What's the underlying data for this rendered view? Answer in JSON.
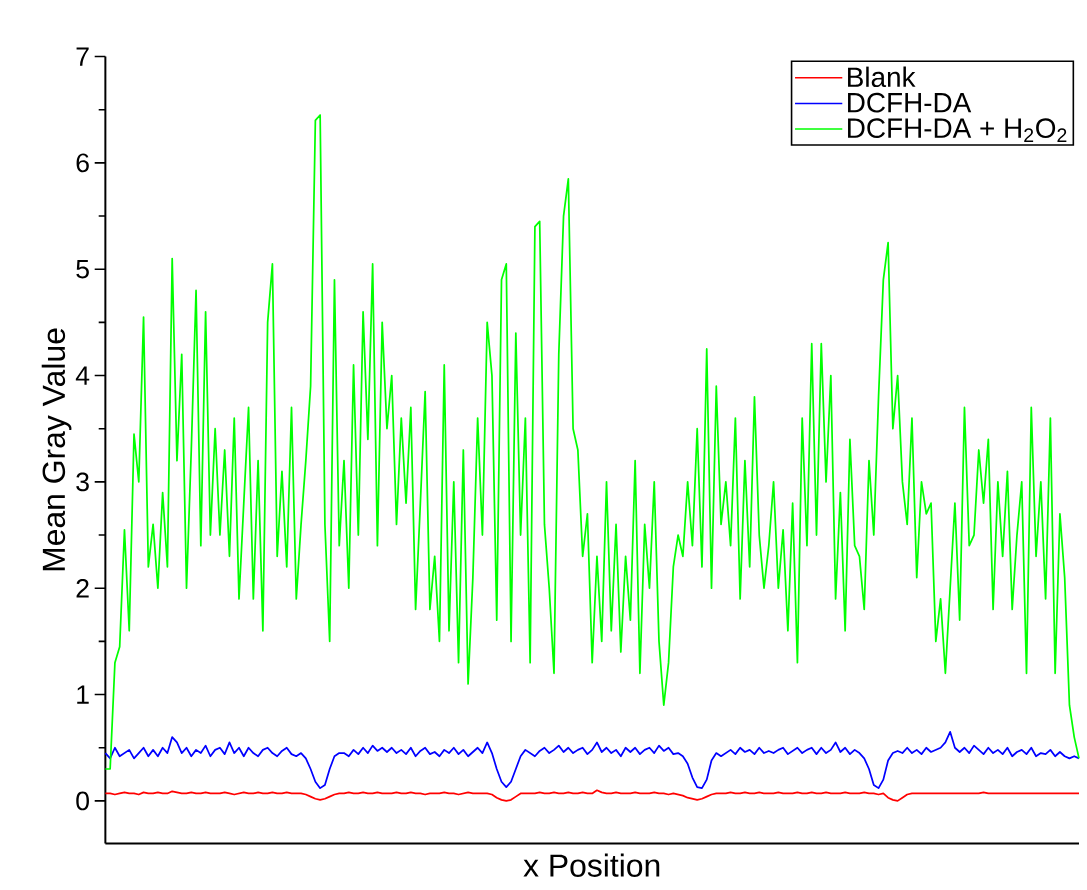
{
  "chart_data": {
    "type": "line",
    "xlabel": "x Position",
    "ylabel": "Mean Gray Value",
    "categories": [
      null,
      null,
      null,
      null,
      null,
      null,
      null,
      null,
      null,
      null,
      null,
      null,
      null,
      null,
      null,
      null,
      null,
      null,
      null,
      null,
      null,
      null,
      null,
      null,
      null,
      null,
      null,
      null,
      null,
      null,
      null,
      null,
      null,
      null,
      null,
      null,
      null,
      null,
      null,
      null,
      null,
      null,
      null,
      null,
      null,
      null,
      null,
      null,
      null,
      null,
      null,
      null,
      null,
      null,
      null,
      null,
      null,
      null,
      null,
      null,
      null,
      null,
      null,
      null,
      null,
      null,
      null,
      null,
      null,
      null,
      null,
      null,
      null,
      null,
      null,
      null,
      null,
      null,
      null,
      null,
      null,
      null,
      null,
      null,
      null,
      null,
      null,
      null,
      null,
      null,
      null,
      null,
      null,
      null,
      null,
      null,
      null,
      null,
      null,
      null,
      null,
      null,
      null,
      null,
      null,
      null,
      null,
      null,
      null,
      null,
      null,
      null,
      null,
      null,
      null,
      null,
      null,
      null,
      null,
      null,
      null,
      null,
      null,
      null,
      null,
      null,
      null,
      null,
      null,
      null,
      null,
      null,
      null,
      null,
      null,
      null,
      null,
      null,
      null,
      null,
      null,
      null,
      null,
      null,
      null,
      null,
      null,
      null,
      null,
      null,
      null,
      null,
      null,
      null,
      null,
      null,
      null,
      null,
      null,
      null,
      null,
      null,
      null,
      null,
      null,
      null,
      null,
      null,
      null,
      null,
      null,
      null,
      null,
      null,
      null,
      null,
      null,
      null,
      null,
      null,
      null,
      null,
      null,
      null,
      null,
      null,
      null,
      null,
      null,
      null,
      null,
      null,
      null,
      null,
      null,
      null,
      null,
      null,
      null,
      null,
      null,
      null,
      null,
      null,
      null
    ],
    "series": [
      {
        "name": "Blank",
        "color": "#ff0000",
        "values": [
          0.07,
          0.07,
          0.06,
          0.07,
          0.08,
          0.07,
          0.07,
          0.06,
          0.08,
          0.07,
          0.07,
          0.08,
          0.07,
          0.07,
          0.09,
          0.08,
          0.07,
          0.07,
          0.08,
          0.07,
          0.07,
          0.08,
          0.07,
          0.07,
          0.07,
          0.08,
          0.07,
          0.06,
          0.07,
          0.08,
          0.07,
          0.07,
          0.08,
          0.07,
          0.07,
          0.08,
          0.07,
          0.07,
          0.08,
          0.07,
          0.07,
          0.07,
          0.06,
          0.04,
          0.02,
          0.01,
          0.02,
          0.04,
          0.06,
          0.07,
          0.07,
          0.08,
          0.07,
          0.07,
          0.08,
          0.07,
          0.07,
          0.08,
          0.07,
          0.07,
          0.07,
          0.08,
          0.07,
          0.07,
          0.08,
          0.07,
          0.07,
          0.06,
          0.07,
          0.07,
          0.07,
          0.08,
          0.07,
          0.07,
          0.06,
          0.07,
          0.08,
          0.07,
          0.07,
          0.07,
          0.07,
          0.06,
          0.03,
          0.01,
          0.0,
          0.01,
          0.04,
          0.07,
          0.07,
          0.07,
          0.07,
          0.08,
          0.07,
          0.07,
          0.08,
          0.07,
          0.07,
          0.08,
          0.07,
          0.07,
          0.08,
          0.07,
          0.07,
          0.1,
          0.08,
          0.07,
          0.07,
          0.08,
          0.07,
          0.07,
          0.07,
          0.08,
          0.07,
          0.07,
          0.07,
          0.08,
          0.07,
          0.07,
          0.06,
          0.07,
          0.06,
          0.05,
          0.03,
          0.02,
          0.01,
          0.02,
          0.04,
          0.06,
          0.07,
          0.07,
          0.07,
          0.08,
          0.07,
          0.07,
          0.08,
          0.07,
          0.07,
          0.08,
          0.07,
          0.07,
          0.07,
          0.08,
          0.07,
          0.07,
          0.07,
          0.08,
          0.07,
          0.07,
          0.08,
          0.07,
          0.07,
          0.08,
          0.07,
          0.07,
          0.07,
          0.08,
          0.07,
          0.07,
          0.07,
          0.08,
          0.07,
          0.07,
          0.06,
          0.07,
          0.03,
          0.01,
          0.0,
          0.03,
          0.06,
          0.07,
          0.07,
          0.07,
          0.07,
          0.07,
          0.07,
          0.07,
          0.07,
          0.07,
          0.07,
          0.07,
          0.07,
          0.07,
          0.07,
          0.07,
          0.08,
          0.07,
          0.07,
          0.07,
          0.07,
          0.07,
          0.07,
          0.07,
          0.07,
          0.07,
          0.07,
          0.07,
          0.07,
          0.07,
          0.07,
          0.07,
          0.07,
          0.07,
          0.07,
          0.07,
          0.07
        ]
      },
      {
        "name": "DCFH-DA",
        "color": "#0000ff",
        "values": [
          0.45,
          0.4,
          0.5,
          0.42,
          0.45,
          0.48,
          0.4,
          0.45,
          0.5,
          0.42,
          0.48,
          0.42,
          0.5,
          0.45,
          0.6,
          0.55,
          0.45,
          0.5,
          0.42,
          0.48,
          0.45,
          0.52,
          0.42,
          0.48,
          0.5,
          0.44,
          0.55,
          0.45,
          0.5,
          0.42,
          0.5,
          0.45,
          0.42,
          0.48,
          0.5,
          0.45,
          0.42,
          0.47,
          0.5,
          0.44,
          0.42,
          0.45,
          0.4,
          0.3,
          0.18,
          0.12,
          0.15,
          0.3,
          0.42,
          0.45,
          0.45,
          0.42,
          0.48,
          0.44,
          0.5,
          0.45,
          0.52,
          0.47,
          0.5,
          0.46,
          0.5,
          0.45,
          0.48,
          0.44,
          0.5,
          0.42,
          0.47,
          0.5,
          0.44,
          0.46,
          0.42,
          0.48,
          0.45,
          0.5,
          0.44,
          0.48,
          0.42,
          0.46,
          0.5,
          0.45,
          0.55,
          0.45,
          0.3,
          0.18,
          0.13,
          0.18,
          0.3,
          0.42,
          0.48,
          0.45,
          0.42,
          0.47,
          0.5,
          0.45,
          0.48,
          0.52,
          0.46,
          0.5,
          0.45,
          0.48,
          0.5,
          0.44,
          0.48,
          0.55,
          0.46,
          0.5,
          0.45,
          0.48,
          0.42,
          0.5,
          0.46,
          0.5,
          0.44,
          0.48,
          0.5,
          0.45,
          0.52,
          0.47,
          0.5,
          0.44,
          0.45,
          0.42,
          0.35,
          0.22,
          0.13,
          0.12,
          0.2,
          0.38,
          0.45,
          0.42,
          0.45,
          0.48,
          0.44,
          0.5,
          0.46,
          0.48,
          0.44,
          0.5,
          0.45,
          0.47,
          0.45,
          0.48,
          0.5,
          0.44,
          0.47,
          0.5,
          0.45,
          0.48,
          0.5,
          0.44,
          0.5,
          0.45,
          0.48,
          0.55,
          0.46,
          0.5,
          0.44,
          0.48,
          0.45,
          0.4,
          0.3,
          0.15,
          0.12,
          0.2,
          0.38,
          0.45,
          0.47,
          0.45,
          0.5,
          0.45,
          0.48,
          0.44,
          0.5,
          0.46,
          0.48,
          0.5,
          0.55,
          0.65,
          0.5,
          0.46,
          0.5,
          0.45,
          0.52,
          0.48,
          0.44,
          0.5,
          0.45,
          0.48,
          0.44,
          0.5,
          0.42,
          0.46,
          0.48,
          0.44,
          0.5,
          0.42,
          0.45,
          0.44,
          0.48,
          0.42,
          0.46,
          0.42,
          0.4,
          0.42,
          0.4
        ]
      },
      {
        "name": "DCFH-DA + H$_{2}$O$_{2}$",
        "color": "#00ff00",
        "values": [
          0.3,
          0.3,
          1.3,
          1.45,
          2.55,
          1.6,
          3.45,
          3.0,
          4.55,
          2.2,
          2.6,
          2.0,
          2.9,
          2.2,
          5.1,
          3.2,
          4.2,
          2.0,
          3.3,
          4.8,
          2.4,
          4.6,
          2.5,
          3.5,
          2.5,
          3.3,
          2.3,
          3.6,
          1.9,
          2.8,
          3.7,
          1.9,
          3.2,
          1.6,
          4.5,
          5.05,
          2.3,
          3.1,
          2.2,
          3.7,
          1.9,
          2.6,
          3.2,
          3.9,
          6.4,
          6.45,
          2.6,
          1.5,
          4.9,
          2.4,
          3.2,
          2.0,
          4.1,
          2.5,
          4.6,
          3.4,
          5.05,
          2.4,
          4.5,
          3.5,
          4.0,
          2.6,
          3.6,
          2.8,
          3.7,
          1.8,
          2.8,
          3.85,
          1.8,
          2.3,
          1.5,
          4.1,
          1.6,
          3.0,
          1.3,
          3.3,
          1.1,
          2.1,
          3.6,
          2.5,
          4.5,
          4.0,
          1.7,
          4.9,
          5.05,
          1.5,
          4.4,
          2.5,
          3.6,
          1.3,
          5.4,
          5.45,
          2.6,
          2.0,
          1.2,
          4.2,
          5.5,
          5.85,
          3.5,
          3.3,
          2.3,
          2.7,
          1.3,
          2.3,
          1.5,
          3.0,
          1.6,
          2.6,
          1.4,
          2.3,
          1.7,
          3.2,
          1.2,
          2.6,
          2.0,
          3.0,
          1.5,
          0.9,
          1.3,
          2.2,
          2.5,
          2.3,
          3.0,
          2.4,
          3.5,
          2.2,
          4.25,
          2.0,
          3.9,
          2.6,
          3.0,
          2.4,
          3.6,
          1.9,
          3.2,
          2.2,
          3.8,
          2.5,
          2.0,
          2.4,
          3.0,
          2.0,
          2.55,
          1.6,
          2.8,
          1.3,
          3.6,
          2.4,
          4.3,
          2.5,
          4.3,
          3.0,
          4.0,
          1.9,
          2.9,
          1.6,
          3.4,
          2.4,
          2.3,
          1.8,
          3.2,
          2.5,
          3.8,
          4.9,
          5.25,
          3.5,
          4.0,
          3.0,
          2.6,
          3.6,
          2.1,
          3.0,
          2.7,
          2.8,
          1.5,
          1.9,
          1.2,
          2.0,
          2.8,
          1.7,
          3.7,
          2.4,
          2.5,
          3.3,
          2.8,
          3.4,
          1.8,
          3.0,
          2.3,
          3.1,
          1.8,
          2.5,
          3.0,
          1.2,
          3.7,
          2.3,
          3.0,
          1.9,
          3.6,
          1.2,
          2.7,
          2.1,
          0.9,
          0.6,
          0.4
        ]
      }
    ],
    "ylim": [
      -0.4,
      7
    ],
    "yticks": [
      0,
      1,
      2,
      3,
      4,
      5,
      6,
      7
    ],
    "legend": "top right",
    "grid": false,
    "marker": "none",
    "line_style": "solid"
  }
}
